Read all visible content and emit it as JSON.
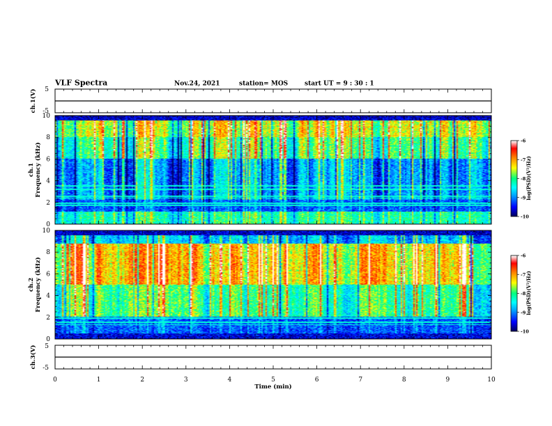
{
  "header": {
    "title": "VLF Spectra",
    "date": "Nov.24, 2021",
    "station": "station= MOS",
    "start": "start  UT =   9 : 30 : 1"
  },
  "colors": {
    "colormap": [
      "#000060",
      "#0000ff",
      "#0096ff",
      "#00ffff",
      "#00ff80",
      "#ffff00",
      "#ff8000",
      "#ff0000",
      "#ffffff"
    ],
    "trace": "#000000"
  },
  "chart_data": [
    {
      "type": "line",
      "id": "ch1_waveform",
      "ylabel": "ch.1(V)",
      "ylim": [
        -5,
        5
      ],
      "yticks": [
        "5",
        "-5"
      ],
      "x": [
        0,
        10
      ],
      "series": [
        {
          "values": [
            0,
            0
          ]
        }
      ]
    },
    {
      "type": "heatmap",
      "id": "ch1_spectrogram",
      "ylabel_top": "ch.1",
      "ylabel": "Frequency (kHz)",
      "ylim": [
        0,
        10
      ],
      "yticks": [
        "0",
        "2",
        "4",
        "6",
        "8",
        "10"
      ],
      "xlim": [
        0,
        10
      ],
      "colorbar": {
        "label": "log(PSD)(V²/Hz)",
        "range": [
          -10,
          -6
        ],
        "ticks": [
          "-6",
          "-7",
          "-8",
          "-9",
          "-10"
        ]
      }
    },
    {
      "type": "heatmap",
      "id": "ch2_spectrogram",
      "ylabel_top": "ch.2",
      "ylabel": "Frequency (kHz)",
      "ylim": [
        0,
        10
      ],
      "yticks": [
        "0",
        "2",
        "4",
        "6",
        "8",
        "10"
      ],
      "xlim": [
        0,
        10
      ],
      "colorbar": {
        "label": "log(PSD)(V²/Hz)",
        "range": [
          -10,
          -6
        ],
        "ticks": [
          "-6",
          "-7",
          "-8",
          "-9",
          "-10"
        ]
      }
    },
    {
      "type": "line",
      "id": "ch3_waveform",
      "ylabel": "ch.3(V)",
      "ylim": [
        -5,
        5
      ],
      "yticks": [
        "5",
        "-5"
      ],
      "x": [
        0,
        10
      ],
      "series": [
        {
          "values": [
            0,
            0
          ]
        }
      ]
    }
  ],
  "xaxis": {
    "label": "Time (min)",
    "xlim": [
      0,
      10
    ],
    "ticks": [
      "0",
      "1",
      "2",
      "3",
      "4",
      "5",
      "6",
      "7",
      "8",
      "9",
      "10"
    ]
  }
}
